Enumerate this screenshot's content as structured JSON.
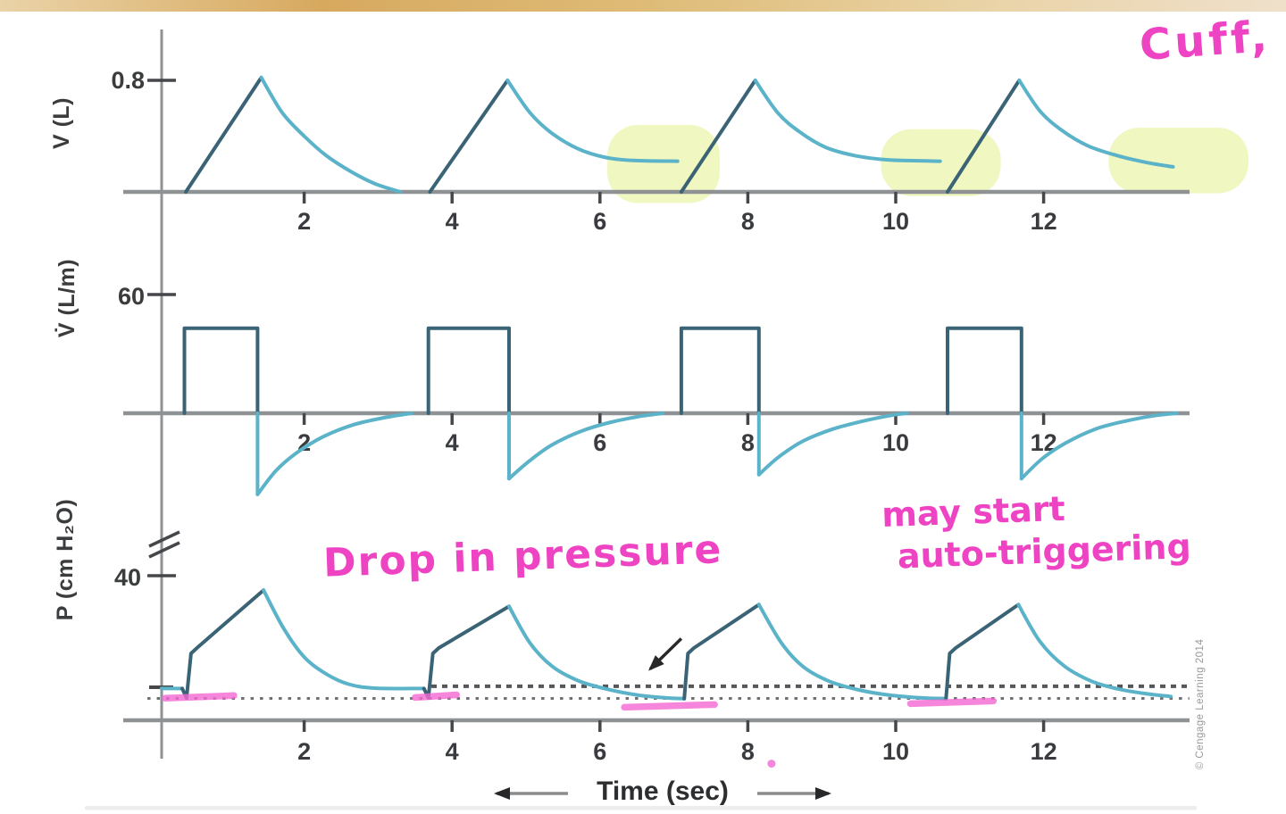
{
  "annotations": {
    "cuff": "Cuff,",
    "drop_in_pressure": "Drop in pressure",
    "may_start_line1": "may start",
    "may_start_line2": "auto-triggering",
    "credit": "© Cengage Learning 2014",
    "highlights": [
      {
        "panel": "volume",
        "t1": 6.1,
        "t2": 7.62,
        "v_top": 0.48,
        "v_bot": -0.08
      },
      {
        "panel": "volume",
        "t1": 9.8,
        "t2": 11.42,
        "v_top": 0.45,
        "v_bot": -0.03
      },
      {
        "panel": "volume",
        "t1": 12.88,
        "t2": 14.77,
        "v_top": 0.46,
        "v_bot": -0.01
      }
    ],
    "marker_strokes": [
      {
        "t1": 0.12,
        "t2": 1.05,
        "v": 6.1
      },
      {
        "t1": 3.5,
        "t2": 4.06,
        "v": 6.3
      },
      {
        "t1": 6.33,
        "t2": 7.55,
        "v": 3.6
      },
      {
        "t1": 10.2,
        "t2": 11.32,
        "v": 4.6
      }
    ],
    "marker_dots": [
      {
        "t": 8.32,
        "v": -12
      }
    ],
    "arrow": {
      "t1": 7.1,
      "v1": 22.6,
      "t2": 6.68,
      "v2": 14.2
    }
  },
  "colors": {
    "curve_dark": "#3a6375",
    "curve_teal": "#5bb3c9",
    "axis": "#8f9294",
    "tick": "#45474a",
    "text_dark": "#393b3e",
    "dotted_upper": "#54565a",
    "dotted_lower": "#6e7073",
    "ink": "#ee43c3",
    "marker": "#f468d3",
    "highlight": "#e4f18c",
    "topbar": [
      "#ead3a8",
      "#d7a95f",
      "#debb77",
      "#e9d2a4",
      "#efe0cb"
    ]
  },
  "chart_data": [
    {
      "id": "volume",
      "type": "line",
      "ylabel": "V (L)",
      "ytick_label": "0.8",
      "ytick_value": 0.8,
      "xticks": [
        2,
        4,
        6,
        8,
        10,
        12
      ],
      "segments": [
        {
          "tone": "dark",
          "points": [
            [
              0.4,
              0
            ],
            [
              1.42,
              0.82
            ]
          ]
        },
        {
          "tone": "teal",
          "points": [
            [
              1.42,
              0.82
            ],
            [
              1.7,
              0.57
            ],
            [
              2.0,
              0.4
            ],
            [
              2.3,
              0.26
            ],
            [
              2.62,
              0.15
            ],
            [
              2.95,
              0.06
            ],
            [
              3.3,
              0
            ]
          ]
        },
        {
          "tone": "dark",
          "points": [
            [
              3.7,
              0
            ],
            [
              4.75,
              0.8
            ]
          ]
        },
        {
          "tone": "teal",
          "points": [
            [
              4.75,
              0.8
            ],
            [
              5.05,
              0.57
            ],
            [
              5.35,
              0.42
            ],
            [
              5.7,
              0.31
            ],
            [
              6.05,
              0.25
            ],
            [
              6.45,
              0.225
            ],
            [
              7.05,
              0.22
            ]
          ]
        },
        {
          "tone": "dark",
          "points": [
            [
              7.1,
              0
            ],
            [
              8.1,
              0.8
            ]
          ]
        },
        {
          "tone": "teal",
          "points": [
            [
              8.1,
              0.8
            ],
            [
              8.4,
              0.57
            ],
            [
              8.7,
              0.43
            ],
            [
              9.05,
              0.32
            ],
            [
              9.45,
              0.26
            ],
            [
              9.9,
              0.23
            ],
            [
              10.6,
              0.22
            ]
          ]
        },
        {
          "tone": "dark",
          "points": [
            [
              10.7,
              0
            ],
            [
              11.67,
              0.8
            ]
          ]
        },
        {
          "tone": "teal",
          "points": [
            [
              11.67,
              0.8
            ],
            [
              11.95,
              0.58
            ],
            [
              12.25,
              0.44
            ],
            [
              12.6,
              0.33
            ],
            [
              13.0,
              0.26
            ],
            [
              13.4,
              0.21
            ],
            [
              13.75,
              0.18
            ]
          ]
        }
      ]
    },
    {
      "id": "flow",
      "type": "line",
      "ylabel": "V̇ (L/m)",
      "ytick_label": "60",
      "ytick_value": 60,
      "xticks": [
        2,
        4,
        6,
        8,
        10,
        12
      ],
      "segments": [
        {
          "tone": "dark",
          "points": [
            [
              0.38,
              0
            ],
            [
              0.38,
              43
            ],
            [
              1.37,
              43
            ],
            [
              1.37,
              0
            ]
          ]
        },
        {
          "tone": "teal",
          "points": [
            [
              1.37,
              0
            ],
            [
              1.37,
              -41
            ]
          ]
        },
        {
          "tone": "teal",
          "points": [
            [
              1.37,
              -41
            ],
            [
              1.62,
              -29
            ],
            [
              1.9,
              -20
            ],
            [
              2.25,
              -12
            ],
            [
              2.65,
              -6
            ],
            [
              3.05,
              -2.5
            ],
            [
              3.45,
              0
            ]
          ]
        },
        {
          "tone": "dark",
          "points": [
            [
              3.68,
              0
            ],
            [
              3.68,
              43
            ],
            [
              4.77,
              43
            ],
            [
              4.77,
              0
            ]
          ]
        },
        {
          "tone": "teal",
          "points": [
            [
              4.77,
              0
            ],
            [
              4.77,
              -33
            ]
          ]
        },
        {
          "tone": "teal",
          "points": [
            [
              4.77,
              -33
            ],
            [
              5.05,
              -24
            ],
            [
              5.35,
              -16
            ],
            [
              5.75,
              -9
            ],
            [
              6.15,
              -4.5
            ],
            [
              6.55,
              -1.5
            ],
            [
              6.85,
              0
            ]
          ]
        },
        {
          "tone": "dark",
          "points": [
            [
              7.1,
              0
            ],
            [
              7.1,
              43
            ],
            [
              8.15,
              43
            ],
            [
              8.15,
              0
            ]
          ]
        },
        {
          "tone": "teal",
          "points": [
            [
              8.15,
              0
            ],
            [
              8.15,
              -31
            ]
          ]
        },
        {
          "tone": "teal",
          "points": [
            [
              8.15,
              -31
            ],
            [
              8.42,
              -22
            ],
            [
              8.75,
              -14
            ],
            [
              9.15,
              -8
            ],
            [
              9.55,
              -4
            ],
            [
              9.95,
              -1
            ],
            [
              10.15,
              0
            ]
          ]
        },
        {
          "tone": "dark",
          "points": [
            [
              10.7,
              0
            ],
            [
              10.7,
              43
            ],
            [
              11.7,
              43
            ],
            [
              11.7,
              0
            ]
          ]
        },
        {
          "tone": "teal",
          "points": [
            [
              11.7,
              0
            ],
            [
              11.7,
              -33
            ]
          ]
        },
        {
          "tone": "teal",
          "points": [
            [
              11.7,
              -33
            ],
            [
              11.98,
              -23
            ],
            [
              12.3,
              -15
            ],
            [
              12.7,
              -8
            ],
            [
              13.1,
              -4
            ],
            [
              13.5,
              -1.2
            ],
            [
              13.8,
              0
            ]
          ]
        }
      ]
    },
    {
      "id": "pressure",
      "type": "line",
      "ylabel": "P (cm H₂O)",
      "ytick_label": "40",
      "ytick_value": 40,
      "xticks": [
        2,
        4,
        6,
        8,
        10,
        12
      ],
      "xlabel": "Time (sec)",
      "baseline_upper": {
        "value": 9.4,
        "t1": 3.72,
        "t2": 13.97
      },
      "baseline_lower": {
        "value": 6.05,
        "t1": -0.12,
        "t2": 13.97
      },
      "segments": [
        {
          "tone": "teal",
          "points": [
            [
              0.07,
              8.8
            ],
            [
              0.35,
              8.8
            ]
          ]
        },
        {
          "tone": "dark",
          "points": [
            [
              0.35,
              8.8
            ],
            [
              0.41,
              6.2
            ],
            [
              0.47,
              18.5
            ],
            [
              0.55,
              20
            ],
            [
              1.45,
              36
            ]
          ]
        },
        {
          "tone": "teal",
          "points": [
            [
              1.45,
              36
            ],
            [
              1.72,
              25.5
            ],
            [
              2.0,
              17.5
            ],
            [
              2.3,
              12.8
            ],
            [
              2.6,
              10
            ],
            [
              2.95,
              8.9
            ],
            [
              3.62,
              8.8
            ]
          ]
        },
        {
          "tone": "dark",
          "points": [
            [
              3.62,
              8.8
            ],
            [
              3.68,
              6.2
            ],
            [
              3.74,
              18.5
            ],
            [
              3.82,
              20
            ],
            [
              4.77,
              31.5
            ]
          ]
        },
        {
          "tone": "teal",
          "points": [
            [
              4.77,
              31.5
            ],
            [
              5.05,
              21.5
            ],
            [
              5.35,
              15
            ],
            [
              5.7,
              11
            ],
            [
              6.1,
              8.6
            ],
            [
              6.5,
              7
            ],
            [
              6.9,
              6.2
            ],
            [
              7.14,
              6.0
            ]
          ]
        },
        {
          "tone": "dark",
          "points": [
            [
              7.14,
              6.0
            ],
            [
              7.19,
              18.5
            ],
            [
              7.27,
              20
            ],
            [
              8.15,
              32
            ]
          ]
        },
        {
          "tone": "teal",
          "points": [
            [
              8.15,
              32
            ],
            [
              8.45,
              21.5
            ],
            [
              8.75,
              14.8
            ],
            [
              9.1,
              10.8
            ],
            [
              9.5,
              8.4
            ],
            [
              9.9,
              7
            ],
            [
              10.35,
              6.2
            ],
            [
              10.68,
              6.0
            ]
          ]
        },
        {
          "tone": "dark",
          "points": [
            [
              10.68,
              6.0
            ],
            [
              10.73,
              18.5
            ],
            [
              10.81,
              20
            ],
            [
              11.66,
              32
            ]
          ]
        },
        {
          "tone": "teal",
          "points": [
            [
              11.66,
              32
            ],
            [
              11.95,
              21.8
            ],
            [
              12.28,
              15
            ],
            [
              12.65,
              10.8
            ],
            [
              13.0,
              8.7
            ],
            [
              13.4,
              7.3
            ],
            [
              13.72,
              6.6
            ]
          ]
        }
      ]
    }
  ]
}
